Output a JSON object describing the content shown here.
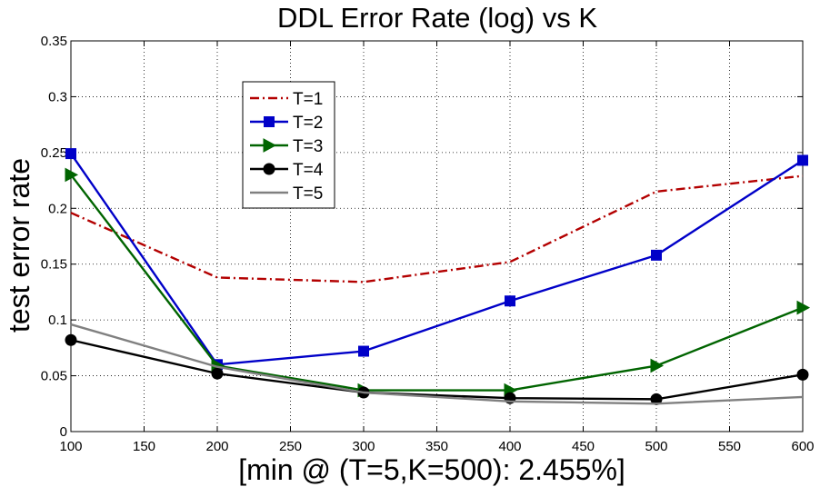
{
  "chart_data": {
    "type": "line",
    "title": "DDL Error Rate (log) vs K",
    "xlabel": "[min @ (T=5,K=500): 2.455%]",
    "ylabel": "test error rate",
    "xlim": [
      100,
      600
    ],
    "ylim": [
      0,
      0.35
    ],
    "grid": true,
    "legend_position": "top-left (inside)",
    "xticks": [
      100,
      150,
      200,
      250,
      300,
      350,
      400,
      450,
      500,
      550,
      600
    ],
    "yticks": [
      0,
      0.05,
      0.1,
      0.15,
      0.2,
      0.25,
      0.3,
      0.35
    ],
    "xtick_labels": [
      "100",
      "150",
      "200",
      "250",
      "300",
      "350",
      "400",
      "450",
      "500",
      "550",
      "600"
    ],
    "ytick_labels": [
      "0",
      "0.05",
      "0.1",
      "0.15",
      "0.2",
      "0.25",
      "0.3",
      "0.35"
    ],
    "x": [
      100,
      200,
      300,
      400,
      500,
      600
    ],
    "series": [
      {
        "name": "T=1",
        "values": [
          0.196,
          0.138,
          0.134,
          0.152,
          0.215,
          0.229
        ],
        "color": "#b30000",
        "dash": "dashdot",
        "marker": "none"
      },
      {
        "name": "T=2",
        "values": [
          0.249,
          0.06,
          0.072,
          0.117,
          0.158,
          0.243
        ],
        "color": "#0000c8",
        "dash": "solid",
        "marker": "square"
      },
      {
        "name": "T=3",
        "values": [
          0.23,
          0.059,
          0.037,
          0.037,
          0.059,
          0.111
        ],
        "color": "#006400",
        "dash": "solid",
        "marker": "triangle-right"
      },
      {
        "name": "T=4",
        "values": [
          0.082,
          0.052,
          0.035,
          0.03,
          0.029,
          0.051
        ],
        "color": "#000000",
        "dash": "solid",
        "marker": "circle"
      },
      {
        "name": "T=5",
        "values": [
          0.096,
          0.058,
          0.035,
          0.027,
          0.025,
          0.031
        ],
        "color": "#808080",
        "dash": "solid",
        "marker": "none"
      }
    ]
  }
}
